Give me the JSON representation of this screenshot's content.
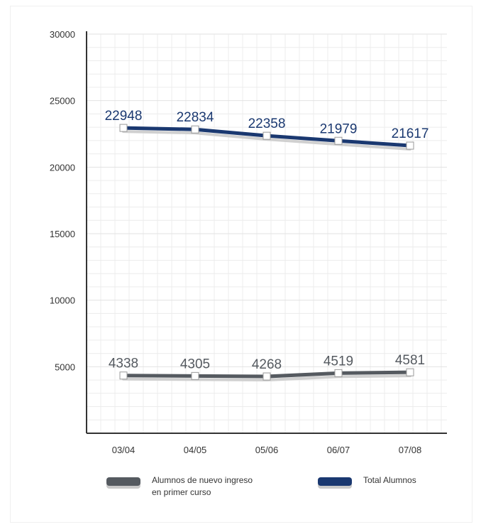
{
  "chart_data": {
    "type": "line",
    "categories": [
      "03/04",
      "04/05",
      "05/06",
      "06/07",
      "07/08"
    ],
    "ylim": [
      0,
      30000
    ],
    "yticks": [
      "30000",
      "25000",
      "20000",
      "15000",
      "10000",
      "5000"
    ],
    "series": [
      {
        "name": "Total Alumnos",
        "values": [
          22948,
          22834,
          22358,
          21979,
          21617
        ],
        "labels": [
          "22948",
          "22834",
          "22358",
          "21979",
          "21617"
        ],
        "color": "#1a3870"
      },
      {
        "name": "Alumnos de nuevo ingreso\nen primer curso",
        "values": [
          4338,
          4305,
          4268,
          4519,
          4581
        ],
        "labels": [
          "4338",
          "4305",
          "4268",
          "4519",
          "4581"
        ],
        "color": "#555a60"
      }
    ]
  },
  "legend": {
    "new_students_label": "Alumnos de nuevo ingreso\nen primer curso",
    "total_label": "Total Alumnos"
  },
  "colors": {
    "total": "#1a3870",
    "new_students": "#555a60",
    "axis": "#333333",
    "grid": "#ececec"
  }
}
